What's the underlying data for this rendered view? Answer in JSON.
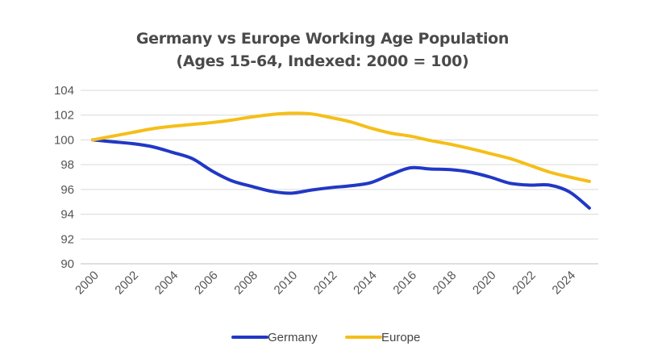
{
  "chart_data": {
    "type": "line",
    "title": "Germany vs Europe Working Age Population",
    "subtitle": "(Ages 15-64, Indexed: 2000 = 100)",
    "xlabel": "",
    "ylabel": "",
    "x": [
      2000,
      2001,
      2002,
      2003,
      2004,
      2005,
      2006,
      2007,
      2008,
      2009,
      2010,
      2011,
      2012,
      2013,
      2014,
      2015,
      2016,
      2017,
      2018,
      2019,
      2020,
      2021,
      2022,
      2023,
      2024,
      2025
    ],
    "x_tick_labels": [
      "2000",
      "2002",
      "2004",
      "2006",
      "2008",
      "2010",
      "2012",
      "2014",
      "2016",
      "2018",
      "2020",
      "2022",
      "2024"
    ],
    "ylim": [
      90,
      104
    ],
    "y_tick_labels": [
      "90",
      "92",
      "94",
      "96",
      "98",
      "100",
      "102",
      "104"
    ],
    "grid": true,
    "legend_position": "bottom",
    "series": [
      {
        "name": "Germany",
        "color": "#2138c5",
        "values": [
          100,
          99.85,
          99.7,
          99.45,
          99.0,
          98.5,
          97.5,
          96.7,
          96.25,
          95.85,
          95.7,
          95.95,
          96.15,
          96.3,
          96.55,
          97.2,
          97.75,
          97.65,
          97.6,
          97.4,
          97.0,
          96.5,
          96.35,
          96.35,
          95.8,
          94.5
        ]
      },
      {
        "name": "Europe",
        "color": "#f5bf19",
        "values": [
          100,
          100.3,
          100.6,
          100.9,
          101.1,
          101.25,
          101.4,
          101.6,
          101.85,
          102.05,
          102.15,
          102.1,
          101.8,
          101.45,
          100.95,
          100.55,
          100.3,
          99.95,
          99.65,
          99.3,
          98.9,
          98.5,
          97.95,
          97.4,
          97.0,
          96.65
        ]
      }
    ]
  }
}
